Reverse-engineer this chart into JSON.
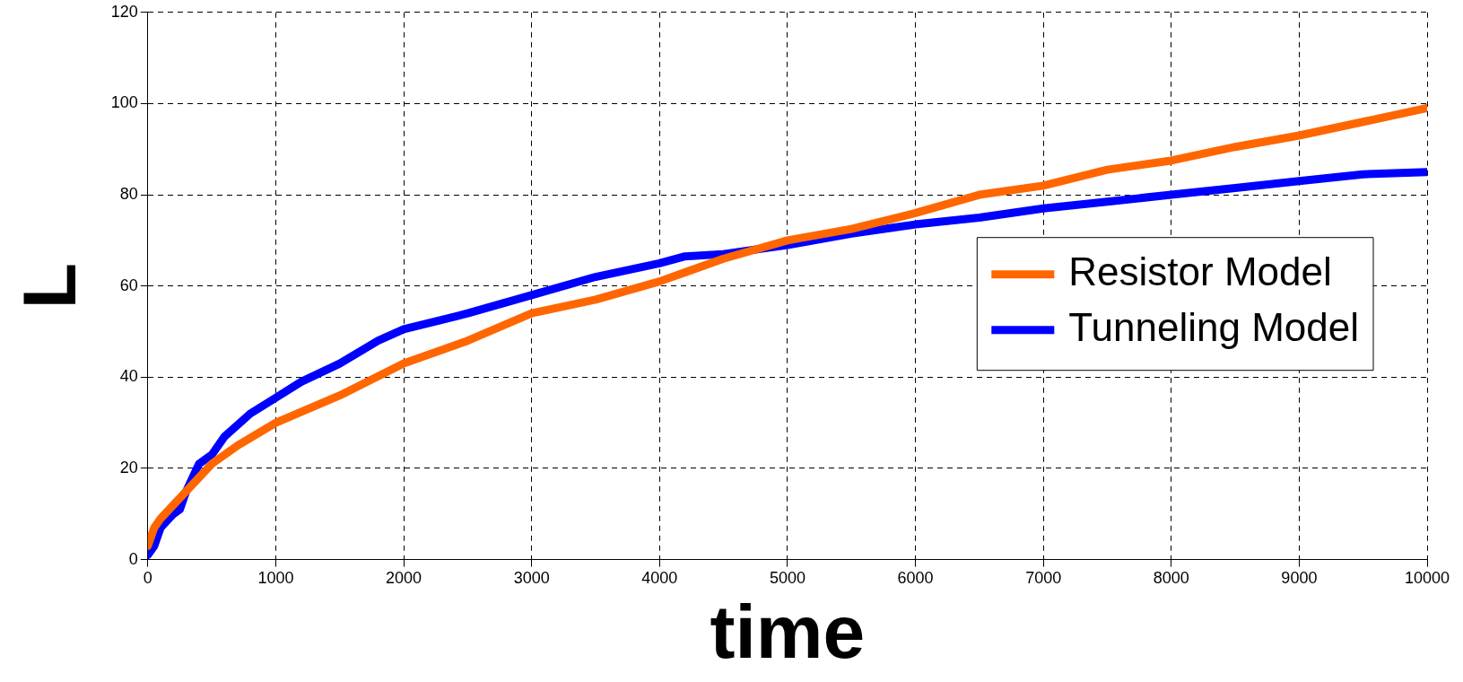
{
  "chart_data": {
    "type": "line",
    "xlabel": "time",
    "ylabel": "L",
    "xlim": [
      0,
      10000
    ],
    "xticks": [
      0,
      1000,
      2000,
      3000,
      4000,
      5000,
      6000,
      7000,
      8000,
      9000,
      10000
    ],
    "ylim": [
      0,
      120
    ],
    "yticks": [
      0,
      20,
      40,
      60,
      80,
      100,
      120
    ],
    "grid": true,
    "legend": "right",
    "marker": "none",
    "line_style": "solid",
    "series": [
      {
        "name": "Resistor Model",
        "color": "#ff6600",
        "x": [
          0,
          50,
          100,
          200,
          300,
          400,
          500,
          700,
          1000,
          1500,
          2000,
          2500,
          3000,
          3500,
          4000,
          4500,
          5000,
          5500,
          6000,
          6500,
          7000,
          7500,
          8000,
          8500,
          9000,
          9500,
          10000
        ],
        "values": [
          3,
          7,
          9,
          12,
          15,
          18,
          21,
          25,
          30,
          36,
          43,
          48,
          54,
          57,
          61,
          66,
          70,
          72.5,
          76,
          80,
          82,
          85.5,
          87.5,
          90.5,
          93,
          96,
          99
        ]
      },
      {
        "name": "Tunneling Model",
        "color": "#0000ff",
        "x": [
          0,
          50,
          100,
          200,
          250,
          300,
          400,
          500,
          600,
          800,
          1000,
          1200,
          1500,
          1800,
          2000,
          2500,
          3000,
          3500,
          4000,
          4200,
          4500,
          5000,
          5500,
          6000,
          6500,
          7000,
          7500,
          8000,
          8500,
          9000,
          9500,
          10000
        ],
        "values": [
          1,
          3,
          7,
          10,
          11,
          15,
          21,
          23,
          27,
          32,
          35.5,
          39,
          43,
          48,
          50.5,
          54,
          58,
          62,
          65,
          66.5,
          67,
          69,
          71.5,
          73.5,
          75,
          77,
          78.5,
          80,
          81.5,
          83,
          84.5,
          85
        ]
      }
    ]
  }
}
